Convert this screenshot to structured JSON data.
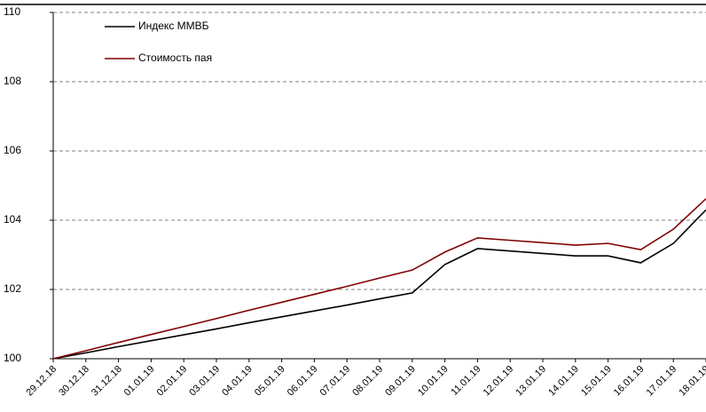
{
  "chart_data": {
    "type": "line",
    "categories": [
      "29.12.18",
      "30.12.18",
      "31.12.18",
      "01.01.19",
      "02.01.19",
      "03.01.19",
      "04.01.19",
      "05.01.19",
      "06.01.19",
      "07.01.19",
      "08.01.19",
      "09.01.19",
      "10.01.19",
      "11.01.19",
      "12.01.19",
      "13.01.19",
      "14.01.19",
      "15.01.19",
      "16.01.19",
      "17.01.19",
      "18.01.19"
    ],
    "series": [
      {
        "name": "Индекс ММВБ",
        "color": "#000000",
        "values": [
          100,
          100.17,
          100.35,
          100.52,
          100.69,
          100.86,
          101.04,
          101.21,
          101.38,
          101.55,
          101.73,
          101.9,
          102.72,
          103.18,
          103.11,
          103.04,
          102.97,
          102.97,
          102.77,
          103.33,
          104.3
        ]
      },
      {
        "name": "Стоимость пая",
        "color": "#800000",
        "values": [
          100,
          100.23,
          100.47,
          100.7,
          100.93,
          101.16,
          101.4,
          101.63,
          101.86,
          102.09,
          102.33,
          102.56,
          103.08,
          103.49,
          103.42,
          103.35,
          103.28,
          103.33,
          103.15,
          103.74,
          104.62
        ]
      }
    ],
    "ylim": [
      100,
      110
    ],
    "yticks": [
      100,
      102,
      104,
      106,
      108,
      110
    ],
    "grid": true,
    "legend": "top-left"
  }
}
